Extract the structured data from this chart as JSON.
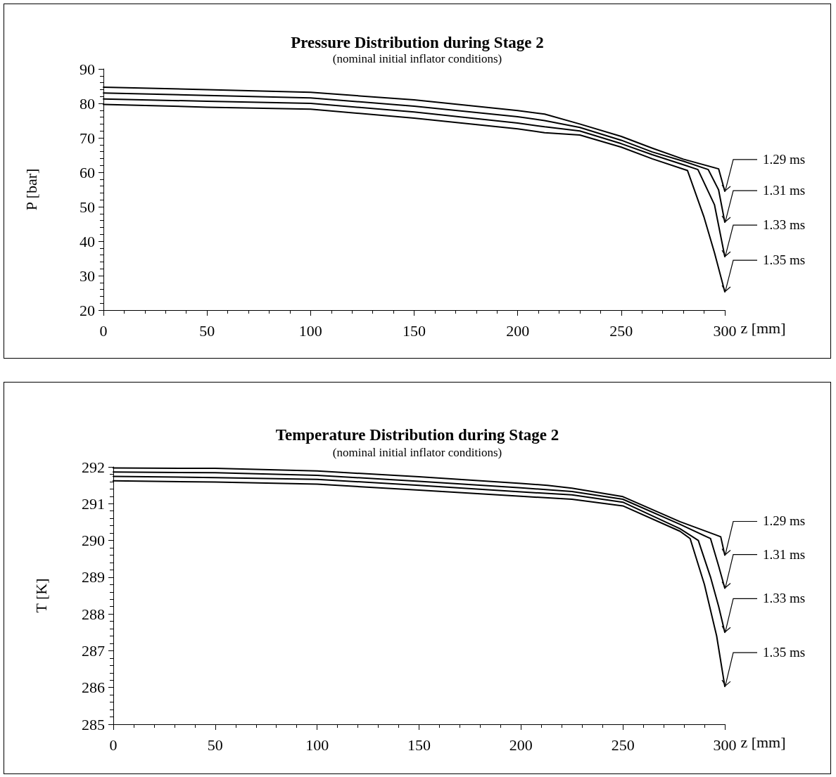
{
  "chart_data": [
    {
      "type": "line",
      "title": "Pressure Distribution during Stage 2",
      "subtitle": "(nominal initial inflator conditions)",
      "xlabel": "z [mm]",
      "ylabel": "P [bar]",
      "xlim": [
        0,
        300
      ],
      "xticks": [
        0,
        50,
        100,
        150,
        200,
        250,
        300
      ],
      "ylim": [
        20,
        90
      ],
      "yticks": [
        20,
        30,
        40,
        50,
        60,
        70,
        80,
        90
      ],
      "marker": "none",
      "line_style": "solid",
      "series": [
        {
          "name": "1.29 ms",
          "color": "#000000",
          "x": [
            0,
            50,
            100,
            150,
            200,
            213,
            230,
            250,
            265,
            280,
            297,
            300
          ],
          "values": [
            84.7,
            84.0,
            83.2,
            81.0,
            77.9,
            76.9,
            74.0,
            70.4,
            67.0,
            63.8,
            61.0,
            54.5
          ]
        },
        {
          "name": "1.31 ms",
          "color": "#000000",
          "x": [
            0,
            50,
            100,
            150,
            200,
            213,
            230,
            250,
            265,
            280,
            292,
            297,
            300
          ],
          "values": [
            83.0,
            82.3,
            81.6,
            79.2,
            76.1,
            75.0,
            73.0,
            69.3,
            65.9,
            63.2,
            60.8,
            54.9,
            45.5
          ]
        },
        {
          "name": "1.33 ms",
          "color": "#000000",
          "x": [
            0,
            50,
            100,
            150,
            200,
            213,
            230,
            250,
            265,
            280,
            287,
            295,
            300
          ],
          "values": [
            81.3,
            80.6,
            80.0,
            77.5,
            74.3,
            73.2,
            72.0,
            68.3,
            65.1,
            62.2,
            60.8,
            50.6,
            35.5
          ]
        },
        {
          "name": "1.35 ms",
          "color": "#000000",
          "x": [
            0,
            50,
            100,
            150,
            200,
            213,
            230,
            250,
            265,
            282,
            290,
            295,
            300
          ],
          "values": [
            79.7,
            78.9,
            78.3,
            75.7,
            72.6,
            71.5,
            70.8,
            67.3,
            63.9,
            60.5,
            46.9,
            36.7,
            25.3
          ]
        }
      ]
    },
    {
      "type": "line",
      "title": "Temperature Distribution during Stage 2",
      "subtitle": "(nominal initial inflator conditions)",
      "xlabel": "z [mm]",
      "ylabel": "T [K]",
      "xlim": [
        0,
        300
      ],
      "xticks": [
        0,
        50,
        100,
        150,
        200,
        250,
        300
      ],
      "ylim": [
        285,
        292
      ],
      "yticks": [
        285,
        286,
        287,
        288,
        289,
        290,
        291,
        292
      ],
      "marker": "none",
      "line_style": "solid",
      "series": [
        {
          "name": "1.29 ms",
          "color": "#000000",
          "x": [
            0,
            50,
            100,
            150,
            200,
            213,
            225,
            250,
            278,
            298,
            300
          ],
          "values": [
            291.97,
            291.96,
            291.89,
            291.73,
            291.55,
            291.5,
            291.42,
            291.19,
            290.51,
            290.1,
            289.6
          ]
        },
        {
          "name": "1.31 ms",
          "color": "#000000",
          "x": [
            0,
            50,
            100,
            150,
            200,
            225,
            250,
            278,
            293,
            297,
            300
          ],
          "values": [
            291.86,
            291.84,
            291.77,
            291.61,
            291.43,
            291.33,
            291.12,
            290.44,
            290.05,
            289.3,
            288.7
          ]
        },
        {
          "name": "1.33 ms",
          "color": "#000000",
          "x": [
            0,
            50,
            100,
            150,
            200,
            225,
            250,
            278,
            287,
            293,
            297,
            300
          ],
          "values": [
            291.74,
            291.71,
            291.66,
            291.5,
            291.32,
            291.24,
            291.04,
            290.32,
            290.0,
            289.0,
            288.2,
            287.5
          ]
        },
        {
          "name": "1.35 ms",
          "color": "#000000",
          "x": [
            0,
            50,
            100,
            150,
            200,
            225,
            250,
            278,
            283,
            290,
            296,
            300
          ],
          "values": [
            291.62,
            291.59,
            291.53,
            291.37,
            291.2,
            291.12,
            290.94,
            290.25,
            290.05,
            288.8,
            287.4,
            286.03
          ]
        }
      ]
    }
  ]
}
